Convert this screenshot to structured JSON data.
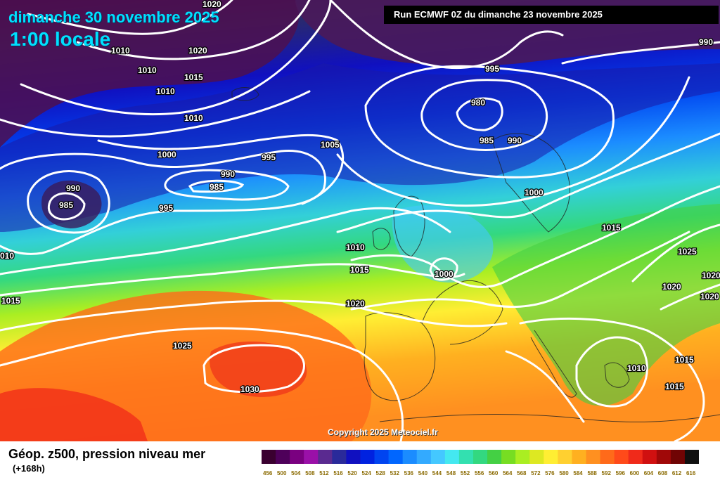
{
  "header": {
    "date": "dimanche 30 novembre 2025",
    "local_time": "1:00 locale",
    "run": "Run ECMWF 0Z du dimanche 23 novembre 2025"
  },
  "footer": {
    "copyright": "Copyright 2025 Meteociel.fr",
    "map_title": "Géop. z500, pression niveau mer",
    "forecast_hour": "(+168h)"
  },
  "colors": {
    "contour": "#ffffff",
    "coastline": "#222222",
    "banner_bg": "#000000",
    "title_text": "#00e0ff"
  },
  "scale": {
    "labels": [
      "456",
      "500",
      "504",
      "508",
      "512",
      "516",
      "520",
      "524",
      "528",
      "532",
      "536",
      "540",
      "544",
      "548",
      "552",
      "556",
      "560",
      "564",
      "568",
      "572",
      "576",
      "580",
      "584",
      "588",
      "592",
      "596",
      "600",
      "604",
      "608",
      "612",
      "616"
    ],
    "colors": [
      "#3a0030",
      "#4e005a",
      "#7a0080",
      "#9a10a8",
      "#5a2a90",
      "#2a2a9a",
      "#1010c0",
      "#0022e0",
      "#0044f0",
      "#0066ff",
      "#1b8cff",
      "#33aaff",
      "#44c8ff",
      "#44e8f0",
      "#33e0b0",
      "#33d880",
      "#44d044",
      "#77dd22",
      "#aaee22",
      "#dde822",
      "#ffee33",
      "#ffd030",
      "#ffb020",
      "#ff9020",
      "#ff6a1a",
      "#ff4a1a",
      "#f02a1a",
      "#d01010",
      "#a00808",
      "#700404",
      "#101010"
    ]
  },
  "isobar_labels": [
    {
      "text": "1020",
      "id": "a"
    },
    {
      "text": "1010",
      "id": "b"
    },
    {
      "text": "1010",
      "id": "c"
    },
    {
      "text": "1020",
      "id": "d"
    },
    {
      "text": "1015",
      "id": "e"
    },
    {
      "text": "1010",
      "id": "f"
    },
    {
      "text": "1010",
      "id": "g"
    },
    {
      "text": "1000",
      "id": "h"
    },
    {
      "text": "995",
      "id": "i"
    },
    {
      "text": "1005",
      "id": "j"
    },
    {
      "text": "990",
      "id": "k"
    },
    {
      "text": "985",
      "id": "l"
    },
    {
      "text": "990",
      "id": "m"
    },
    {
      "text": "985",
      "id": "n"
    },
    {
      "text": "995",
      "id": "o"
    },
    {
      "text": "1010",
      "id": "p"
    },
    {
      "text": "1015",
      "id": "q"
    },
    {
      "text": "1015",
      "id": "r"
    },
    {
      "text": "1020",
      "id": "s"
    },
    {
      "text": "1025",
      "id": "t"
    },
    {
      "text": "1030",
      "id": "u"
    },
    {
      "text": "995",
      "id": "v"
    },
    {
      "text": "980",
      "id": "w"
    },
    {
      "text": "985",
      "id": "x"
    },
    {
      "text": "990",
      "id": "y"
    },
    {
      "text": "1000",
      "id": "z"
    },
    {
      "text": "990",
      "id": "aa"
    },
    {
      "text": "1015",
      "id": "ab"
    },
    {
      "text": "1000",
      "id": "ac"
    },
    {
      "text": "1025",
      "id": "ad"
    },
    {
      "text": "1020",
      "id": "ae"
    },
    {
      "text": "1020",
      "id": "af"
    },
    {
      "text": "1020",
      "id": "ag"
    },
    {
      "text": "1010",
      "id": "ah"
    },
    {
      "text": "1015",
      "id": "ai"
    },
    {
      "text": "1015",
      "id": "aj"
    },
    {
      "text": "010",
      "id": "ak"
    }
  ]
}
